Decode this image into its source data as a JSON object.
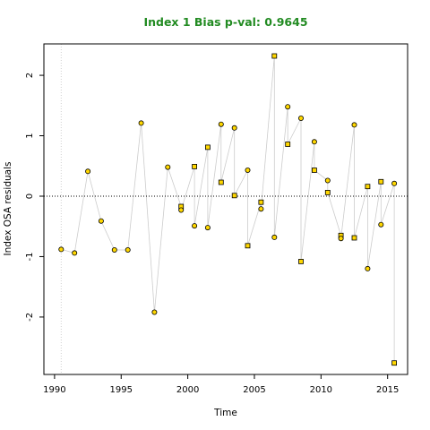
{
  "chart_data": {
    "type": "scatter",
    "title": "Index 1 Bias p-val: 0.9645",
    "title_color": "#228B22",
    "xlabel": "Time",
    "ylabel": "Index OSA residuals",
    "xlim": [
      1989.2,
      2016.5
    ],
    "ylim": [
      -2.95,
      2.52
    ],
    "x_ticks": [
      1990,
      1995,
      2000,
      2005,
      2010,
      2015
    ],
    "y_ticks": [
      -2,
      -1,
      0,
      1,
      2
    ],
    "reference_line_y": 0,
    "reference_vline_x": 1990.5,
    "grid": false,
    "marker_fill": "#FFD700",
    "marker_edge": "#000000",
    "connector_color": "#CCCCCC",
    "points": [
      {
        "x": 1990.5,
        "y": -0.88,
        "marker": "circle"
      },
      {
        "x": 1991.5,
        "y": -0.94,
        "marker": "circle"
      },
      {
        "x": 1992.5,
        "y": 0.41,
        "marker": "circle"
      },
      {
        "x": 1993.5,
        "y": -0.41,
        "marker": "circle"
      },
      {
        "x": 1994.5,
        "y": -0.89,
        "marker": "circle"
      },
      {
        "x": 1995.5,
        "y": -0.89,
        "marker": "circle"
      },
      {
        "x": 1996.5,
        "y": 1.21,
        "marker": "circle"
      },
      {
        "x": 1997.5,
        "y": -1.92,
        "marker": "circle"
      },
      {
        "x": 1998.5,
        "y": 0.48,
        "marker": "circle"
      },
      {
        "x": 1999.5,
        "y": -0.17,
        "marker": "square"
      },
      {
        "x": 1999.5,
        "y": -0.23,
        "marker": "circle"
      },
      {
        "x": 2000.5,
        "y": 0.49,
        "marker": "square"
      },
      {
        "x": 2000.5,
        "y": -0.49,
        "marker": "circle"
      },
      {
        "x": 2001.5,
        "y": 0.81,
        "marker": "square"
      },
      {
        "x": 2001.5,
        "y": -0.52,
        "marker": "circle"
      },
      {
        "x": 2002.5,
        "y": 1.19,
        "marker": "circle"
      },
      {
        "x": 2002.5,
        "y": 0.23,
        "marker": "square"
      },
      {
        "x": 2003.5,
        "y": 1.13,
        "marker": "circle"
      },
      {
        "x": 2003.5,
        "y": 0.01,
        "marker": "square"
      },
      {
        "x": 2004.5,
        "y": 0.43,
        "marker": "circle"
      },
      {
        "x": 2004.5,
        "y": -0.82,
        "marker": "square"
      },
      {
        "x": 2005.5,
        "y": -0.1,
        "marker": "square"
      },
      {
        "x": 2005.5,
        "y": -0.21,
        "marker": "circle"
      },
      {
        "x": 2006.5,
        "y": 2.32,
        "marker": "square"
      },
      {
        "x": 2006.5,
        "y": -0.68,
        "marker": "circle"
      },
      {
        "x": 2007.5,
        "y": 1.48,
        "marker": "circle"
      },
      {
        "x": 2007.5,
        "y": 0.86,
        "marker": "square"
      },
      {
        "x": 2008.5,
        "y": 1.29,
        "marker": "circle"
      },
      {
        "x": 2008.5,
        "y": -1.08,
        "marker": "square"
      },
      {
        "x": 2009.5,
        "y": 0.9,
        "marker": "circle"
      },
      {
        "x": 2009.5,
        "y": 0.43,
        "marker": "square"
      },
      {
        "x": 2010.5,
        "y": 0.26,
        "marker": "circle"
      },
      {
        "x": 2010.5,
        "y": 0.06,
        "marker": "square"
      },
      {
        "x": 2011.5,
        "y": -0.65,
        "marker": "square"
      },
      {
        "x": 2011.5,
        "y": -0.7,
        "marker": "circle"
      },
      {
        "x": 2012.5,
        "y": 1.18,
        "marker": "circle"
      },
      {
        "x": 2012.5,
        "y": -0.69,
        "marker": "square"
      },
      {
        "x": 2013.5,
        "y": 0.16,
        "marker": "square"
      },
      {
        "x": 2013.5,
        "y": -1.2,
        "marker": "circle"
      },
      {
        "x": 2014.5,
        "y": 0.24,
        "marker": "square"
      },
      {
        "x": 2014.5,
        "y": -0.47,
        "marker": "circle"
      },
      {
        "x": 2015.5,
        "y": 0.21,
        "marker": "circle"
      },
      {
        "x": 2015.5,
        "y": -2.76,
        "marker": "square"
      }
    ]
  }
}
